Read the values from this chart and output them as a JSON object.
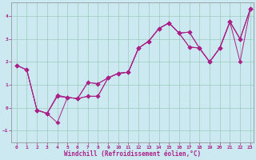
{
  "xlabel": "Windchill (Refroidissement éolien,°C)",
  "background_color": "#cce8f0",
  "grid_color": "#99ccbb",
  "line_color": "#aa2288",
  "xlim": [
    -0.5,
    23.3
  ],
  "ylim": [
    -1.5,
    4.6
  ],
  "xticks": [
    0,
    1,
    2,
    3,
    4,
    5,
    6,
    7,
    8,
    9,
    10,
    11,
    12,
    13,
    14,
    15,
    16,
    17,
    18,
    19,
    20,
    21,
    22,
    23
  ],
  "yticks": [
    -1,
    0,
    1,
    2,
    3,
    4
  ],
  "line1_x": [
    0,
    1,
    2,
    3,
    4,
    5,
    6,
    7,
    8,
    9,
    10,
    11,
    12,
    13,
    14,
    15,
    16,
    17,
    18,
    19,
    20,
    21,
    22,
    23
  ],
  "line1_y": [
    1.85,
    1.65,
    -0.1,
    -0.25,
    0.5,
    0.45,
    0.4,
    0.5,
    0.5,
    1.3,
    1.5,
    1.55,
    2.6,
    2.9,
    3.45,
    3.7,
    3.25,
    2.65,
    2.6,
    2.0,
    2.6,
    3.75,
    2.0,
    4.3
  ],
  "line2_x": [
    2,
    3,
    4,
    5,
    6,
    7,
    8,
    9,
    10,
    11,
    12,
    13,
    14,
    15,
    16,
    17,
    18,
    19,
    20,
    21,
    22,
    23
  ],
  "line2_y": [
    -0.1,
    -0.25,
    -0.65,
    0.45,
    0.4,
    1.1,
    1.05,
    1.3,
    1.5,
    1.55,
    2.6,
    2.9,
    3.45,
    3.7,
    3.25,
    3.3,
    2.6,
    2.0,
    2.6,
    3.75,
    3.0,
    4.3
  ],
  "line3_x": [
    0,
    1,
    2,
    3,
    4,
    5,
    6,
    7,
    8,
    9,
    10,
    11,
    12,
    13,
    14,
    15,
    16,
    17,
    18,
    19,
    20,
    21,
    22,
    23
  ],
  "line3_y": [
    1.85,
    1.65,
    -0.1,
    -0.25,
    0.5,
    0.45,
    0.4,
    0.5,
    0.5,
    1.3,
    1.5,
    1.55,
    2.6,
    2.9,
    3.45,
    3.7,
    3.25,
    2.65,
    2.6,
    2.0,
    2.6,
    3.75,
    3.0,
    4.3
  ],
  "line4_x": [
    0,
    1,
    2,
    3,
    4,
    5,
    6,
    7,
    8,
    9,
    10,
    11,
    12,
    13,
    14,
    15,
    16,
    17,
    18,
    19,
    20,
    21,
    22,
    23
  ],
  "line4_y": [
    1.85,
    1.65,
    -0.1,
    -0.25,
    0.55,
    0.45,
    0.4,
    1.1,
    1.05,
    1.3,
    1.5,
    1.55,
    2.6,
    2.9,
    3.45,
    3.7,
    3.25,
    3.3,
    2.6,
    2.0,
    2.6,
    3.75,
    3.0,
    4.3
  ]
}
